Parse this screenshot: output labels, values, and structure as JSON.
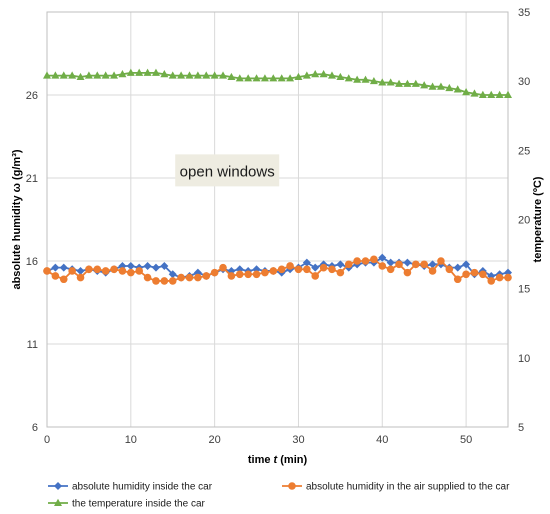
{
  "chart_data": {
    "type": "line",
    "xlabel_prefix": "time ",
    "xlabel_var": "t",
    "xlabel_unit": " (min)",
    "ylabel_left": "absolute humidity ω (g/m³)",
    "ylabel_right": "temperature (ºC)",
    "xlim": [
      0,
      55
    ],
    "ylim_left": [
      6,
      31
    ],
    "ylim_right": [
      5,
      35
    ],
    "x_ticks": [
      "0",
      "10",
      "20",
      "30",
      "40",
      "50"
    ],
    "y_left_ticks": [
      "6",
      "11",
      "16",
      "21",
      "26"
    ],
    "y_right_ticks": [
      "5",
      "10",
      "15",
      "20",
      "25",
      "30",
      "35"
    ],
    "grid": true,
    "annotation": "open windows",
    "legend_position": "bottom",
    "x": [
      0,
      1,
      2,
      3,
      4,
      5,
      6,
      7,
      8,
      9,
      10,
      11,
      12,
      13,
      14,
      15,
      16,
      17,
      18,
      19,
      20,
      21,
      22,
      23,
      24,
      25,
      26,
      27,
      28,
      29,
      30,
      31,
      32,
      33,
      34,
      35,
      36,
      37,
      38,
      39,
      40,
      41,
      42,
      43,
      44,
      45,
      46,
      47,
      48,
      49,
      50,
      51,
      52,
      53,
      54,
      55
    ],
    "series": [
      {
        "name": "absolute humidity inside the car",
        "axis": "left",
        "color": "#4472C4",
        "marker": "diamond",
        "values": [
          15.4,
          15.6,
          15.6,
          15.5,
          15.4,
          15.5,
          15.4,
          15.3,
          15.5,
          15.7,
          15.7,
          15.6,
          15.7,
          15.6,
          15.7,
          15.2,
          15.0,
          15.1,
          15.3,
          15.1,
          15.3,
          15.5,
          15.4,
          15.5,
          15.4,
          15.5,
          15.4,
          15.4,
          15.3,
          15.5,
          15.6,
          15.9,
          15.6,
          15.8,
          15.7,
          15.8,
          15.6,
          15.8,
          15.9,
          15.9,
          16.2,
          15.9,
          15.9,
          15.9,
          15.8,
          15.7,
          15.8,
          15.8,
          15.6,
          15.6,
          15.8,
          15.2,
          15.4,
          15.1,
          15.2,
          15.3
        ]
      },
      {
        "name": "absolute humidity in the air supplied to the car",
        "axis": "left",
        "color": "#ED7D31",
        "marker": "circle",
        "values": [
          15.4,
          15.1,
          14.9,
          15.4,
          15.0,
          15.5,
          15.5,
          15.4,
          15.5,
          15.4,
          15.3,
          15.4,
          15.0,
          14.8,
          14.8,
          14.8,
          15.0,
          15.0,
          15.0,
          15.1,
          15.3,
          15.6,
          15.1,
          15.2,
          15.2,
          15.2,
          15.3,
          15.4,
          15.5,
          15.7,
          15.5,
          15.5,
          15.1,
          15.6,
          15.5,
          15.3,
          15.8,
          16.0,
          16.0,
          16.1,
          15.7,
          15.5,
          15.8,
          15.3,
          15.8,
          15.8,
          15.4,
          16.0,
          15.5,
          14.9,
          15.2,
          15.3,
          15.2,
          14.8,
          15.0,
          15.0
        ]
      },
      {
        "name": "the temperature inside the car",
        "axis": "right",
        "color": "#70AD47",
        "marker": "triangle",
        "values": [
          30.4,
          30.4,
          30.4,
          30.4,
          30.3,
          30.4,
          30.4,
          30.4,
          30.4,
          30.5,
          30.6,
          30.6,
          30.6,
          30.6,
          30.5,
          30.4,
          30.4,
          30.4,
          30.4,
          30.4,
          30.4,
          30.4,
          30.3,
          30.2,
          30.2,
          30.2,
          30.2,
          30.2,
          30.2,
          30.2,
          30.3,
          30.4,
          30.5,
          30.5,
          30.4,
          30.3,
          30.2,
          30.1,
          30.1,
          30.0,
          29.9,
          29.9,
          29.8,
          29.8,
          29.8,
          29.7,
          29.6,
          29.6,
          29.5,
          29.4,
          29.2,
          29.1,
          29.0,
          29.0,
          29.0,
          29.0
        ]
      }
    ]
  }
}
